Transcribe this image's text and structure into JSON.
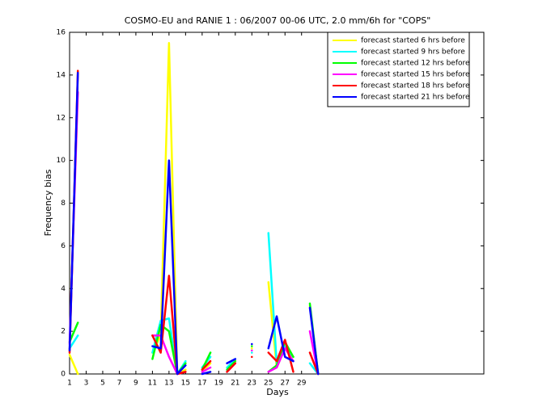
{
  "chart_data": {
    "type": "line",
    "title": "COSMO-EU and RANIE 1 : 06/2007 00-06 UTC, 2.0 mm/6h for \"COPS\"",
    "xlabel": "Days",
    "ylabel": "Frequency bias",
    "x": [
      1,
      2,
      3,
      4,
      5,
      6,
      7,
      8,
      9,
      10,
      11,
      12,
      13,
      14,
      15,
      16,
      17,
      18,
      19,
      20,
      21,
      22,
      23,
      24,
      25,
      26,
      27,
      28,
      29,
      30,
      31
    ],
    "series": [
      {
        "name": "forecast started 6 hrs before",
        "color": "#ffff00",
        "values": [
          0.9,
          0,
          null,
          null,
          null,
          null,
          null,
          null,
          null,
          null,
          1.0,
          1.8,
          15.5,
          0,
          0.2,
          null,
          0.1,
          0.5,
          null,
          0.1,
          0.6,
          null,
          1.2,
          null,
          4.3,
          0.3,
          1.2,
          0.8,
          null,
          3.2,
          0
        ]
      },
      {
        "name": "forecast started 9 hrs before",
        "color": "#00ffff",
        "values": [
          1.2,
          1.8,
          null,
          null,
          null,
          null,
          null,
          null,
          null,
          null,
          1.0,
          2.5,
          2.6,
          0,
          0.6,
          null,
          0.3,
          0.8,
          null,
          0.3,
          0.7,
          null,
          1.0,
          null,
          6.6,
          0.5,
          1.3,
          0.8,
          null,
          0.5,
          0
        ]
      },
      {
        "name": "forecast started 12 hrs before",
        "color": "#00ff00",
        "values": [
          1.5,
          2.4,
          null,
          null,
          null,
          null,
          null,
          null,
          null,
          null,
          0.7,
          2.3,
          2.0,
          0,
          0.5,
          null,
          0.2,
          1.0,
          null,
          0.2,
          0.6,
          null,
          1.3,
          null,
          0.1,
          0.4,
          1.5,
          0.8,
          null,
          3.3,
          0
        ]
      },
      {
        "name": "forecast started 15 hrs before",
        "color": "#ff00ff",
        "values": [
          1.4,
          13.2,
          null,
          null,
          null,
          null,
          null,
          null,
          null,
          null,
          1.8,
          1.8,
          0.8,
          0,
          0.1,
          null,
          0.1,
          0.3,
          null,
          0.1,
          0.5,
          null,
          1.1,
          null,
          0.1,
          0.3,
          1.2,
          0.6,
          null,
          2.0,
          0
        ]
      },
      {
        "name": "forecast started 18 hrs before",
        "color": "#ff0000",
        "values": [
          1.0,
          14.2,
          null,
          null,
          null,
          null,
          null,
          null,
          null,
          null,
          1.8,
          1.0,
          4.6,
          0,
          0.1,
          null,
          0.2,
          0.6,
          null,
          0.1,
          0.5,
          null,
          0.8,
          null,
          1.0,
          0.6,
          1.6,
          0.1,
          null,
          1.0,
          0
        ]
      },
      {
        "name": "forecast started 21 hrs before",
        "color": "#0000ff",
        "values": [
          1.1,
          14.1,
          null,
          null,
          null,
          null,
          null,
          null,
          null,
          null,
          1.3,
          1.2,
          10.0,
          0,
          0.4,
          null,
          0,
          0.1,
          null,
          0.5,
          0.7,
          null,
          1.4,
          null,
          1.2,
          2.7,
          0.8,
          0.6,
          null,
          3.1,
          0
        ]
      }
    ],
    "xlim": [
      1,
      51
    ],
    "xticks": [
      1,
      3,
      5,
      7,
      9,
      11,
      13,
      15,
      17,
      19,
      21,
      23,
      25,
      27,
      29
    ],
    "ylim": [
      0,
      16
    ],
    "yticks": [
      0,
      2,
      4,
      6,
      8,
      10,
      12,
      14,
      16
    ],
    "legend": "upper right"
  }
}
